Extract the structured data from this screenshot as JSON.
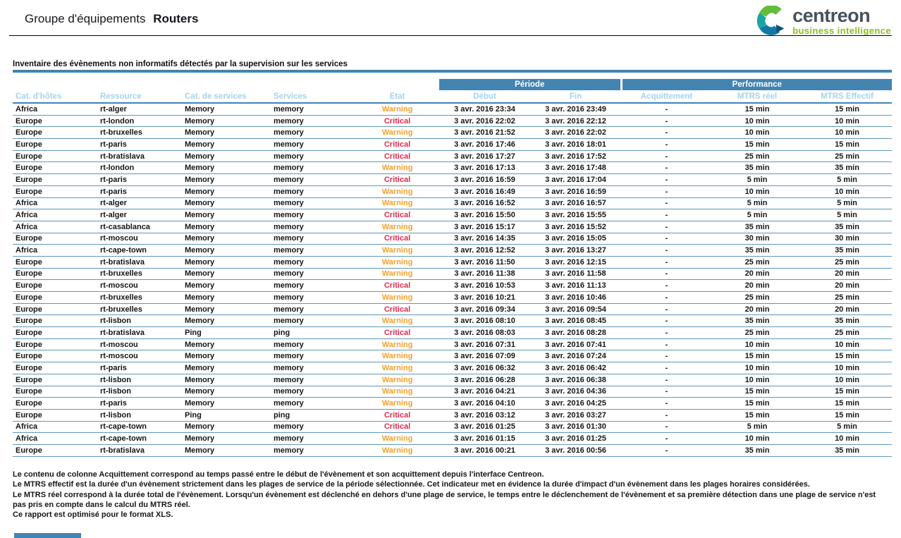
{
  "header": {
    "title_prefix": "Groupe d'équipements",
    "title_name": "Routers",
    "logo": {
      "brand": "centreon",
      "tagline": "business intelligence"
    }
  },
  "section": {
    "title": "Inventaire des évènements non informatifs détectés par la supervision sur les services"
  },
  "table": {
    "group_headers": [
      {
        "label": "Période",
        "span": 2
      },
      {
        "label": "Performance",
        "span": 3
      }
    ],
    "columns": [
      "Cat. d'hôtes",
      "Ressource",
      "Cat. de services",
      "Services",
      "Etat",
      "Début",
      "Fin",
      "Acquittement",
      "MTRS réel",
      "MTRS Effectif"
    ],
    "rows": [
      {
        "host_cat": "Africa",
        "resource": "rt-alger",
        "service_cat": "Memory",
        "service": "memory",
        "state": "Warning",
        "start": "3 avr. 2016 23:34",
        "end": "3 avr. 2016 23:49",
        "ack": "-",
        "mtrs_real": "15 min",
        "mtrs_eff": "15 min"
      },
      {
        "host_cat": "Europe",
        "resource": "rt-london",
        "service_cat": "Memory",
        "service": "memory",
        "state": "Critical",
        "start": "3 avr. 2016 22:02",
        "end": "3 avr. 2016 22:12",
        "ack": "-",
        "mtrs_real": "10 min",
        "mtrs_eff": "10 min"
      },
      {
        "host_cat": "Europe",
        "resource": "rt-bruxelles",
        "service_cat": "Memory",
        "service": "memory",
        "state": "Warning",
        "start": "3 avr. 2016 21:52",
        "end": "3 avr. 2016 22:02",
        "ack": "-",
        "mtrs_real": "10 min",
        "mtrs_eff": "10 min"
      },
      {
        "host_cat": "Europe",
        "resource": "rt-paris",
        "service_cat": "Memory",
        "service": "memory",
        "state": "Critical",
        "start": "3 avr. 2016 17:46",
        "end": "3 avr. 2016 18:01",
        "ack": "-",
        "mtrs_real": "15 min",
        "mtrs_eff": "15 min"
      },
      {
        "host_cat": "Europe",
        "resource": "rt-bratislava",
        "service_cat": "Memory",
        "service": "memory",
        "state": "Critical",
        "start": "3 avr. 2016 17:27",
        "end": "3 avr. 2016 17:52",
        "ack": "-",
        "mtrs_real": "25 min",
        "mtrs_eff": "25 min"
      },
      {
        "host_cat": "Europe",
        "resource": "rt-london",
        "service_cat": "Memory",
        "service": "memory",
        "state": "Warning",
        "start": "3 avr. 2016 17:13",
        "end": "3 avr. 2016 17:48",
        "ack": "-",
        "mtrs_real": "35 min",
        "mtrs_eff": "35 min"
      },
      {
        "host_cat": "Europe",
        "resource": "rt-paris",
        "service_cat": "Memory",
        "service": "memory",
        "state": "Critical",
        "start": "3 avr. 2016 16:59",
        "end": "3 avr. 2016 17:04",
        "ack": "-",
        "mtrs_real": "5 min",
        "mtrs_eff": "5 min"
      },
      {
        "host_cat": "Europe",
        "resource": "rt-paris",
        "service_cat": "Memory",
        "service": "memory",
        "state": "Warning",
        "start": "3 avr. 2016 16:49",
        "end": "3 avr. 2016 16:59",
        "ack": "-",
        "mtrs_real": "10 min",
        "mtrs_eff": "10 min"
      },
      {
        "host_cat": "Africa",
        "resource": "rt-alger",
        "service_cat": "Memory",
        "service": "memory",
        "state": "Warning",
        "start": "3 avr. 2016 16:52",
        "end": "3 avr. 2016 16:57",
        "ack": "-",
        "mtrs_real": "5 min",
        "mtrs_eff": "5 min"
      },
      {
        "host_cat": "Africa",
        "resource": "rt-alger",
        "service_cat": "Memory",
        "service": "memory",
        "state": "Critical",
        "start": "3 avr. 2016 15:50",
        "end": "3 avr. 2016 15:55",
        "ack": "-",
        "mtrs_real": "5 min",
        "mtrs_eff": "5 min"
      },
      {
        "host_cat": "Africa",
        "resource": "rt-casablanca",
        "service_cat": "Memory",
        "service": "memory",
        "state": "Warning",
        "start": "3 avr. 2016 15:17",
        "end": "3 avr. 2016 15:52",
        "ack": "-",
        "mtrs_real": "35 min",
        "mtrs_eff": "35 min"
      },
      {
        "host_cat": "Europe",
        "resource": "rt-moscou",
        "service_cat": "Memory",
        "service": "memory",
        "state": "Critical",
        "start": "3 avr. 2016 14:35",
        "end": "3 avr. 2016 15:05",
        "ack": "-",
        "mtrs_real": "30 min",
        "mtrs_eff": "30 min"
      },
      {
        "host_cat": "Africa",
        "resource": "rt-cape-town",
        "service_cat": "Memory",
        "service": "memory",
        "state": "Warning",
        "start": "3 avr. 2016 12:52",
        "end": "3 avr. 2016 13:27",
        "ack": "-",
        "mtrs_real": "35 min",
        "mtrs_eff": "35 min"
      },
      {
        "host_cat": "Europe",
        "resource": "rt-bratislava",
        "service_cat": "Memory",
        "service": "memory",
        "state": "Warning",
        "start": "3 avr. 2016 11:50",
        "end": "3 avr. 2016 12:15",
        "ack": "-",
        "mtrs_real": "25 min",
        "mtrs_eff": "25 min"
      },
      {
        "host_cat": "Europe",
        "resource": "rt-bruxelles",
        "service_cat": "Memory",
        "service": "memory",
        "state": "Warning",
        "start": "3 avr. 2016 11:38",
        "end": "3 avr. 2016 11:58",
        "ack": "-",
        "mtrs_real": "20 min",
        "mtrs_eff": "20 min"
      },
      {
        "host_cat": "Europe",
        "resource": "rt-moscou",
        "service_cat": "Memory",
        "service": "memory",
        "state": "Critical",
        "start": "3 avr. 2016 10:53",
        "end": "3 avr. 2016 11:13",
        "ack": "-",
        "mtrs_real": "20 min",
        "mtrs_eff": "20 min"
      },
      {
        "host_cat": "Europe",
        "resource": "rt-bruxelles",
        "service_cat": "Memory",
        "service": "memory",
        "state": "Warning",
        "start": "3 avr. 2016 10:21",
        "end": "3 avr. 2016 10:46",
        "ack": "-",
        "mtrs_real": "25 min",
        "mtrs_eff": "25 min"
      },
      {
        "host_cat": "Europe",
        "resource": "rt-bruxelles",
        "service_cat": "Memory",
        "service": "memory",
        "state": "Critical",
        "start": "3 avr. 2016 09:34",
        "end": "3 avr. 2016 09:54",
        "ack": "-",
        "mtrs_real": "20 min",
        "mtrs_eff": "20 min"
      },
      {
        "host_cat": "Europe",
        "resource": "rt-lisbon",
        "service_cat": "Memory",
        "service": "memory",
        "state": "Warning",
        "start": "3 avr. 2016 08:10",
        "end": "3 avr. 2016 08:45",
        "ack": "-",
        "mtrs_real": "35 min",
        "mtrs_eff": "35 min"
      },
      {
        "host_cat": "Europe",
        "resource": "rt-bratislava",
        "service_cat": "Ping",
        "service": "ping",
        "state": "Critical",
        "start": "3 avr. 2016 08:03",
        "end": "3 avr. 2016 08:28",
        "ack": "-",
        "mtrs_real": "25 min",
        "mtrs_eff": "25 min"
      },
      {
        "host_cat": "Europe",
        "resource": "rt-moscou",
        "service_cat": "Memory",
        "service": "memory",
        "state": "Warning",
        "start": "3 avr. 2016 07:31",
        "end": "3 avr. 2016 07:41",
        "ack": "-",
        "mtrs_real": "10 min",
        "mtrs_eff": "10 min"
      },
      {
        "host_cat": "Europe",
        "resource": "rt-moscou",
        "service_cat": "Memory",
        "service": "memory",
        "state": "Warning",
        "start": "3 avr. 2016 07:09",
        "end": "3 avr. 2016 07:24",
        "ack": "-",
        "mtrs_real": "15 min",
        "mtrs_eff": "15 min"
      },
      {
        "host_cat": "Europe",
        "resource": "rt-paris",
        "service_cat": "Memory",
        "service": "memory",
        "state": "Warning",
        "start": "3 avr. 2016 06:32",
        "end": "3 avr. 2016 06:42",
        "ack": "-",
        "mtrs_real": "10 min",
        "mtrs_eff": "10 min"
      },
      {
        "host_cat": "Europe",
        "resource": "rt-lisbon",
        "service_cat": "Memory",
        "service": "memory",
        "state": "Warning",
        "start": "3 avr. 2016 06:28",
        "end": "3 avr. 2016 06:38",
        "ack": "-",
        "mtrs_real": "10 min",
        "mtrs_eff": "10 min"
      },
      {
        "host_cat": "Europe",
        "resource": "rt-lisbon",
        "service_cat": "Memory",
        "service": "memory",
        "state": "Warning",
        "start": "3 avr. 2016 04:21",
        "end": "3 avr. 2016 04:36",
        "ack": "-",
        "mtrs_real": "15 min",
        "mtrs_eff": "15 min"
      },
      {
        "host_cat": "Europe",
        "resource": "rt-paris",
        "service_cat": "Memory",
        "service": "memory",
        "state": "Warning",
        "start": "3 avr. 2016 04:10",
        "end": "3 avr. 2016 04:25",
        "ack": "-",
        "mtrs_real": "15 min",
        "mtrs_eff": "15 min"
      },
      {
        "host_cat": "Europe",
        "resource": "rt-lisbon",
        "service_cat": "Ping",
        "service": "ping",
        "state": "Critical",
        "start": "3 avr. 2016 03:12",
        "end": "3 avr. 2016 03:27",
        "ack": "-",
        "mtrs_real": "15 min",
        "mtrs_eff": "15 min"
      },
      {
        "host_cat": "Africa",
        "resource": "rt-cape-town",
        "service_cat": "Memory",
        "service": "memory",
        "state": "Critical",
        "start": "3 avr. 2016 01:25",
        "end": "3 avr. 2016 01:30",
        "ack": "-",
        "mtrs_real": "5 min",
        "mtrs_eff": "5 min"
      },
      {
        "host_cat": "Africa",
        "resource": "rt-cape-town",
        "service_cat": "Memory",
        "service": "memory",
        "state": "Warning",
        "start": "3 avr. 2016 01:15",
        "end": "3 avr. 2016 01:25",
        "ack": "-",
        "mtrs_real": "10 min",
        "mtrs_eff": "10 min"
      },
      {
        "host_cat": "Europe",
        "resource": "rt-bratislava",
        "service_cat": "Memory",
        "service": "memory",
        "state": "Warning",
        "start": "3 avr. 2016 00:21",
        "end": "3 avr. 2016 00:56",
        "ack": "-",
        "mtrs_real": "35 min",
        "mtrs_eff": "35 min"
      }
    ]
  },
  "footer": {
    "notes": [
      "Le contenu de colonne Acquittement correspond au temps passé entre le début de l'évènement et son acquittement depuis l'interface Centreon.",
      "Le MTRS effectif est la durée d'un évènement strictement dans les plages de service de la période sélectionnée. Cet indicateur met en évidence la durée d'impact d'un évènement dans les plages horaires considérées.",
      "Le MTRS réel correspond à la durée total de l'évènement. Lorsqu'un évènement est déclenché en dehors d'une plage de service, le temps entre le déclenchement de l'évènement et sa première détection dans une plage de service n'est pas pris en compte dans le calcul du MTRS réel.",
      "Ce rapport est optimisé pour le format XLS."
    ]
  },
  "state_colors": {
    "Warning": "#f6a02a",
    "Critical": "#e3294e"
  },
  "colors": {
    "accent": "#4384b1",
    "header_label": "#a5d3ea",
    "row_line": "#5e97bd",
    "warning": "#f6a02a",
    "critical": "#e3294e",
    "brand_green": "#8bbd22",
    "brand_gray": "#45525d"
  }
}
